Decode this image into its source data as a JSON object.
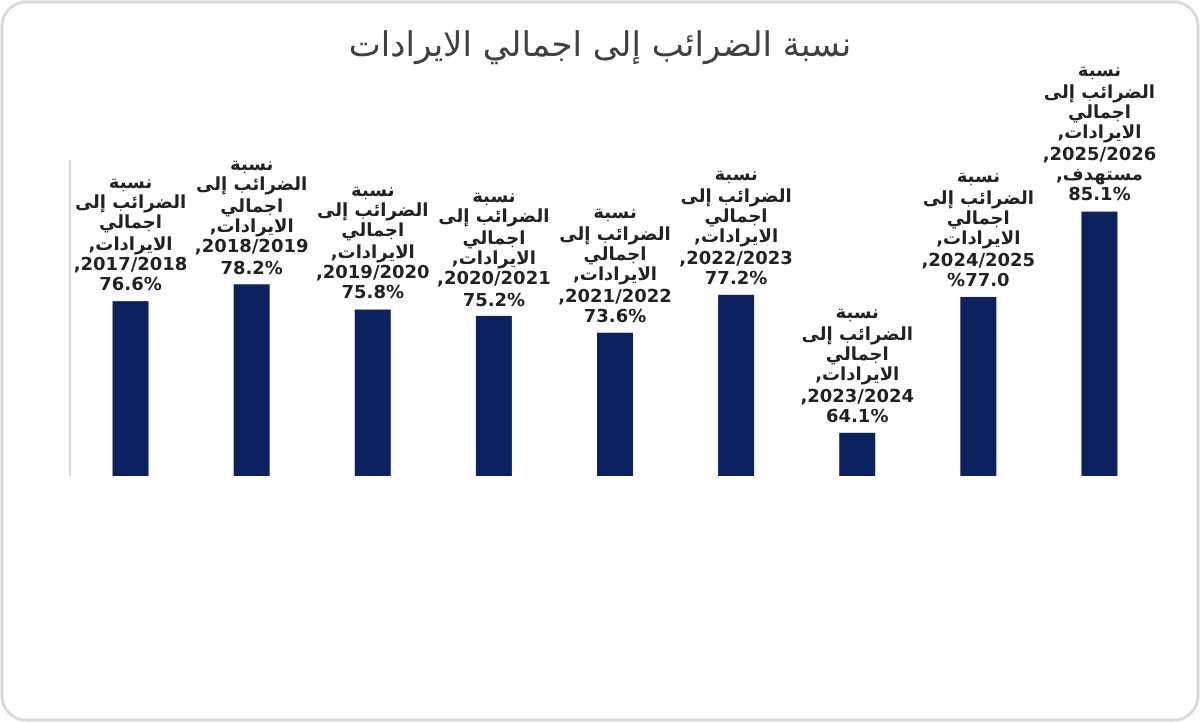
{
  "chart_data": {
    "type": "bar",
    "title": "نسبة الضرائب إلى اجمالي الايرادات",
    "categories": [
      null,
      null,
      null,
      null,
      null,
      null,
      null,
      null,
      null
    ],
    "values": [
      76.6,
      78.2,
      75.8,
      75.2,
      73.6,
      77.2,
      64.1,
      77.0,
      85.1
    ],
    "color": "#0c2260",
    "ylim": [
      60,
      90
    ],
    "tick_labels": false,
    "value_labels": [
      "نسبة الضرائب إلى اجمالي الايرادات, 2017/2018, %76.6",
      "نسبة الضرائب إلى اجمالي الايرادات, 2018/2019, %78.2",
      "نسبة الضرائب إلى اجمالي الايرادات, 2019/2020, %75.8",
      "نسبة الضرائب إلى اجمالي الايرادات, 2020/2021, %75.2",
      "نسبة الضرائب إلى اجمالي الايرادات, 2021/2022, %73.6",
      "نسبة الضرائب إلى اجمالي الايرادات, 2022/2023, %77.2",
      "نسبة الضرائب إلى اجمالي الايرادات, 2023/2024, %64.1",
      "نسبة الضرائب إلى اجمالي الايرادات, 2024/2025, 77.0%",
      "نسبة الضرائب إلى اجمالي الايرادات, 2025/2026, مستهدف, %85.1"
    ]
  }
}
